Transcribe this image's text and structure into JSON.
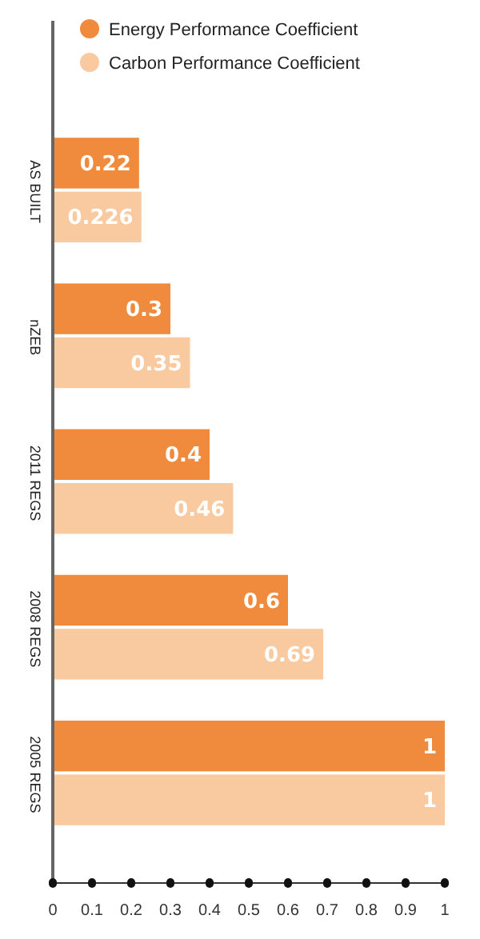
{
  "chart_data": {
    "type": "bar",
    "orientation": "horizontal",
    "categories": [
      "AS BUILT",
      "nZEB",
      "2011 REGS",
      "2008 REGS",
      "2005 REGS"
    ],
    "series": [
      {
        "name": "Energy Performance Coefficient",
        "color": "#f08a3c",
        "values": [
          0.22,
          0.3,
          0.4,
          0.6,
          1
        ]
      },
      {
        "name": "Carbon Performance Coefficient",
        "color": "#f9c9a0",
        "values": [
          0.226,
          0.35,
          0.46,
          0.69,
          1
        ]
      }
    ],
    "xlim": [
      0,
      1
    ],
    "xticks": [
      0,
      0.1,
      0.2,
      0.3,
      0.4,
      0.5,
      0.6,
      0.7,
      0.8,
      0.9,
      1
    ],
    "data_labels": true,
    "legend": "top left",
    "grid": false
  }
}
